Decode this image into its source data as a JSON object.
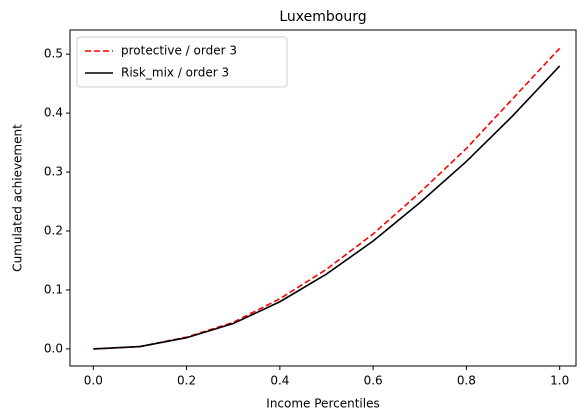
{
  "chart_data": {
    "type": "line",
    "title": "Luxembourg",
    "xlabel": "Income Percentiles",
    "ylabel": "Cumulated achievement",
    "x": [
      0,
      0.1,
      0.2,
      0.3,
      0.4,
      0.5,
      0.6,
      0.7,
      0.8,
      0.9,
      1.0
    ],
    "series": [
      {
        "name": "protective / order 3",
        "color": "#ff0000",
        "linestyle": "dashed",
        "values": [
          0,
          0.004,
          0.02,
          0.045,
          0.085,
          0.135,
          0.195,
          0.265,
          0.34,
          0.425,
          0.51
        ]
      },
      {
        "name": "Risk_mix / order 3",
        "color": "#000000",
        "linestyle": "solid",
        "values": [
          0,
          0.004,
          0.019,
          0.043,
          0.08,
          0.127,
          0.183,
          0.248,
          0.318,
          0.396,
          0.48
        ]
      }
    ],
    "xlim": [
      -0.05,
      1.035
    ],
    "xticks": [
      {
        "value": 0,
        "label": "0.0"
      },
      0.2,
      0.4,
      0.6,
      0.8,
      {
        "value": 1,
        "label": "1.0"
      }
    ],
    "ylim": [
      -0.029,
      0.541
    ],
    "yticks": [
      {
        "value": 0,
        "label": "0.0"
      },
      0.1,
      0.2,
      0.3,
      0.4,
      0.5
    ],
    "grid": false,
    "legend": "upper left"
  }
}
